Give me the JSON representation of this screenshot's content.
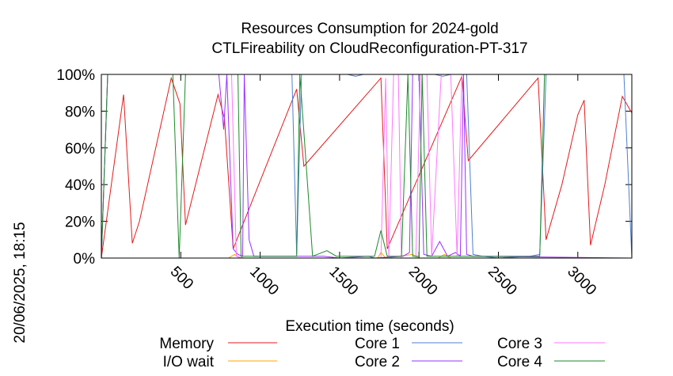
{
  "chart_data": {
    "type": "line",
    "title": "Resources Consumption for 2024-gold",
    "subtitle": "CTLFireability on CloudReconfiguration-PT-317",
    "xlabel": "Execution time (seconds)",
    "ylabel": "",
    "side_label": "20/06/2025, 18:15",
    "xlim": [
      0,
      3340
    ],
    "ylim": [
      0,
      100
    ],
    "x_ticks": [
      500,
      1000,
      1500,
      2000,
      2500,
      3000
    ],
    "x_tick_labels": [
      "500",
      "1000",
      "1500",
      "2000",
      "2500",
      "3000"
    ],
    "y_ticks": [
      0,
      20,
      40,
      60,
      80,
      100
    ],
    "y_tick_labels": [
      "0%",
      "20%",
      "40%",
      "60%",
      "80%",
      "100%"
    ],
    "grid": false,
    "legend_position": "bottom",
    "series": [
      {
        "name": "Memory",
        "color": "#e41a1c",
        "points": [
          [
            0,
            0
          ],
          [
            140,
            89
          ],
          [
            195,
            8
          ],
          [
            240,
            20
          ],
          [
            440,
            98
          ],
          [
            495,
            84
          ],
          [
            530,
            18
          ],
          [
            735,
            89
          ],
          [
            775,
            76
          ],
          [
            830,
            5
          ],
          [
            1230,
            92
          ],
          [
            1275,
            50
          ],
          [
            1760,
            98
          ],
          [
            1800,
            5
          ],
          [
            2270,
            99
          ],
          [
            2310,
            53
          ],
          [
            2750,
            98
          ],
          [
            2800,
            10
          ],
          [
            2900,
            40
          ],
          [
            3000,
            78
          ],
          [
            3040,
            86
          ],
          [
            3080,
            7
          ],
          [
            3170,
            40
          ],
          [
            3280,
            88
          ],
          [
            3340,
            79
          ]
        ]
      },
      {
        "name": "I/O wait",
        "color": "#ffa500",
        "points": [
          [
            0,
            0
          ],
          [
            800,
            0
          ],
          [
            840,
            2
          ],
          [
            870,
            0
          ],
          [
            1740,
            0
          ],
          [
            1760,
            3
          ],
          [
            1790,
            0
          ],
          [
            1960,
            2
          ],
          [
            2000,
            0
          ],
          [
            2120,
            0
          ],
          [
            2160,
            2
          ],
          [
            2200,
            0
          ],
          [
            3340,
            0
          ]
        ]
      },
      {
        "name": "Core 1",
        "color": "#4f7fd1",
        "points": [
          [
            0,
            0
          ],
          [
            40,
            100
          ],
          [
            1200,
            100
          ],
          [
            1230,
            2
          ],
          [
            1260,
            100
          ],
          [
            1550,
            100
          ],
          [
            1600,
            99
          ],
          [
            1650,
            100
          ],
          [
            2100,
            100
          ],
          [
            2150,
            99
          ],
          [
            2200,
            100
          ],
          [
            2300,
            100
          ],
          [
            2340,
            2
          ],
          [
            2400,
            1
          ],
          [
            2500,
            0
          ],
          [
            2700,
            1
          ],
          [
            2760,
            2
          ],
          [
            2800,
            100
          ],
          [
            3290,
            100
          ],
          [
            3340,
            0
          ]
        ]
      },
      {
        "name": "Core 2",
        "color": "#9b30ff",
        "points": [
          [
            0,
            0
          ],
          [
            40,
            100
          ],
          [
            740,
            100
          ],
          [
            770,
            70
          ],
          [
            790,
            100
          ],
          [
            830,
            5
          ],
          [
            860,
            2
          ],
          [
            890,
            1
          ],
          [
            900,
            100
          ],
          [
            930,
            10
          ],
          [
            960,
            1
          ],
          [
            1240,
            1
          ],
          [
            1400,
            1
          ],
          [
            1500,
            0
          ],
          [
            1680,
            1
          ],
          [
            1720,
            0
          ],
          [
            1900,
            1
          ],
          [
            1940,
            3
          ],
          [
            1960,
            100
          ],
          [
            2000,
            100
          ],
          [
            2030,
            2
          ],
          [
            2080,
            1
          ],
          [
            2130,
            9
          ],
          [
            2180,
            1
          ],
          [
            2230,
            3
          ],
          [
            2260,
            1
          ],
          [
            2280,
            100
          ],
          [
            2300,
            2
          ],
          [
            2340,
            1
          ],
          [
            3340,
            0
          ]
        ]
      },
      {
        "name": "Core 3",
        "color": "#ff77ff",
        "points": [
          [
            0,
            0
          ],
          [
            40,
            100
          ],
          [
            820,
            100
          ],
          [
            850,
            1
          ],
          [
            900,
            0
          ],
          [
            1760,
            0
          ],
          [
            1790,
            98
          ],
          [
            1810,
            0
          ],
          [
            1840,
            100
          ],
          [
            1870,
            100
          ],
          [
            1890,
            0
          ],
          [
            1980,
            0
          ],
          [
            2010,
            100
          ],
          [
            2050,
            100
          ],
          [
            2080,
            1
          ],
          [
            2140,
            100
          ],
          [
            2200,
            100
          ],
          [
            2240,
            1
          ],
          [
            2270,
            100
          ],
          [
            3340,
            100
          ]
        ]
      },
      {
        "name": "Core 4",
        "color": "#1b8a2a",
        "points": [
          [
            0,
            0
          ],
          [
            40,
            100
          ],
          [
            450,
            100
          ],
          [
            490,
            0
          ],
          [
            530,
            100
          ],
          [
            860,
            100
          ],
          [
            880,
            1
          ],
          [
            1230,
            1
          ],
          [
            1250,
            100
          ],
          [
            1330,
            1
          ],
          [
            1420,
            4
          ],
          [
            1480,
            1
          ],
          [
            1720,
            1
          ],
          [
            1760,
            15
          ],
          [
            1800,
            1
          ],
          [
            1890,
            1
          ],
          [
            1930,
            100
          ],
          [
            1960,
            1
          ],
          [
            2000,
            1
          ],
          [
            2020,
            100
          ],
          [
            2050,
            1
          ],
          [
            2760,
            1
          ],
          [
            2790,
            100
          ],
          [
            3340,
            100
          ]
        ]
      }
    ]
  }
}
